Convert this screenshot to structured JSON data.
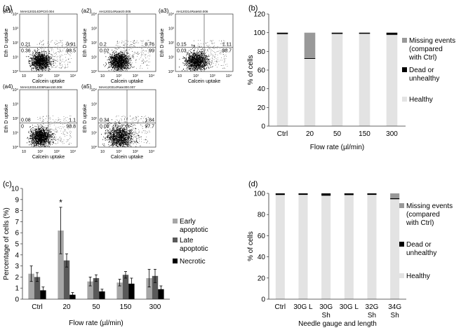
{
  "figure": {
    "panel_labels": {
      "a": "(a)",
      "b": "(b)",
      "c": "(c)",
      "d": "(d)"
    },
    "flow_panels": [
      {
        "label": "(a1)",
        "file": "MAH120314DPCtrl.004",
        "quad": {
          "ul": "0.21",
          "ll": "0.36",
          "ur": "0.91",
          "lr": "98.5"
        }
      },
      {
        "label": "(a2)",
        "file": "AH120314Rate20.005",
        "quad": {
          "ul": "0.2",
          "ll": "0.02",
          "ur": "0.76",
          "lr": "99"
        }
      },
      {
        "label": "(a3)",
        "file": "AH120314Rate50.006",
        "quad": {
          "ul": "0.15",
          "ll": "0.03",
          "ur": "1.11",
          "lr": "98.7"
        }
      },
      {
        "label": "(a4)",
        "file": "MAH120314008Rate150.008",
        "quad": {
          "ul": "0.08",
          "ll": "0",
          "ur": "1.1",
          "lr": "98.8"
        }
      },
      {
        "label": "(a5)",
        "file": "MAH120314Rate300.007",
        "quad": {
          "ul": "0.34",
          "ll": "0.08",
          "ur": "1.84",
          "lr": "97.7"
        }
      }
    ],
    "flow_axes": {
      "xlabel": "Calcein uptake",
      "ylabel": "Eth D uptake",
      "xticks": [
        "10",
        "10²",
        "10³",
        "10⁴"
      ],
      "yticks": [
        "10⁰",
        "10¹",
        "10²",
        "10³",
        "10⁴"
      ]
    }
  },
  "chart_data": [
    {
      "id": "b",
      "type": "bar",
      "stacked": true,
      "categories": [
        "Ctrl",
        "20",
        "50",
        "150",
        "300"
      ],
      "series": [
        {
          "name": "Healthy",
          "color": "#e3e3e3",
          "values": [
            98.5,
            72,
            98.7,
            98.8,
            97.7
          ]
        },
        {
          "name": "Dead or unhealthy",
          "color": "#000000",
          "values": [
            1.5,
            0.8,
            1.3,
            1.2,
            2.3
          ]
        },
        {
          "name": "Missing events (compared with Ctrl)",
          "color": "#999999",
          "values": [
            0,
            27.2,
            0,
            0,
            0
          ]
        }
      ],
      "legend_lines": [
        [
          "Missing events",
          "(compared",
          "with Ctrl)"
        ],
        [
          "Dead or",
          "unhealthy"
        ],
        [
          "Healthy"
        ]
      ],
      "xlabel": "Flow rate (µl/min)",
      "ylabel": "% of cells",
      "ylim": [
        0,
        120
      ],
      "yticks": [
        "0",
        "20",
        "40",
        "60",
        "80",
        "100",
        "120"
      ]
    },
    {
      "id": "c",
      "type": "bar",
      "stacked": false,
      "categories": [
        "Ctrl",
        "20",
        "50",
        "150",
        "300"
      ],
      "series": [
        {
          "name": "Early apoptotic",
          "color": "#a6a6a6",
          "values": [
            2.3,
            6.2,
            1.6,
            1.5,
            1.9
          ],
          "errors": [
            0.7,
            2.1,
            0.4,
            0.3,
            0.8
          ]
        },
        {
          "name": "Late apoptotic",
          "color": "#595959",
          "values": [
            2.0,
            3.5,
            1.9,
            2.2,
            2.1
          ],
          "errors": [
            0.4,
            0.6,
            0.3,
            0.3,
            0.6
          ]
        },
        {
          "name": "Necrotic",
          "color": "#000000",
          "values": [
            0.8,
            0.4,
            0.7,
            1.4,
            0.9
          ],
          "errors": [
            0.3,
            0.2,
            0.2,
            0.5,
            0.3
          ]
        }
      ],
      "legend_lines": [
        [
          "Early",
          "apoptotic"
        ],
        [
          "Late",
          "apoptotic"
        ],
        [
          "Necrotic"
        ]
      ],
      "annotation": "*",
      "xlabel": "Flow rate (µl/min)",
      "ylabel": "Percentage of cells (%)",
      "ylim": [
        0,
        10
      ],
      "yticks": [
        "0",
        "1",
        "2",
        "3",
        "4",
        "5",
        "6",
        "7",
        "8",
        "9",
        "10"
      ]
    },
    {
      "id": "d",
      "type": "bar",
      "stacked": true,
      "categories": [
        [
          "Ctrl"
        ],
        [
          "30G L"
        ],
        [
          "30G",
          "Sh"
        ],
        [
          "30G L"
        ],
        [
          "32G",
          "Sh"
        ],
        [
          "34G",
          "Sh"
        ]
      ],
      "series": [
        {
          "name": "Healthy",
          "color": "#e3e3e3",
          "values": [
            98.5,
            98.6,
            97.8,
            98.4,
            98.6,
            94.5
          ]
        },
        {
          "name": "Dead or unhealthy",
          "color": "#000000",
          "values": [
            1.5,
            1.4,
            2.2,
            1.6,
            1.4,
            1.0
          ]
        },
        {
          "name": "Missing events (compared with Ctrl)",
          "color": "#999999",
          "values": [
            0,
            0,
            0,
            0,
            0,
            4.5
          ]
        }
      ],
      "legend_lines": [
        [
          "Missing events",
          "(compared",
          "with Ctrl)"
        ],
        [
          "Dead or",
          "unhealthy"
        ],
        [
          "Healthy"
        ]
      ],
      "xlabel": "Needle gauge and length",
      "ylabel": "% of cells",
      "ylim": [
        0,
        100
      ],
      "yticks": [
        "0",
        "20",
        "40",
        "60",
        "80",
        "100"
      ]
    }
  ]
}
